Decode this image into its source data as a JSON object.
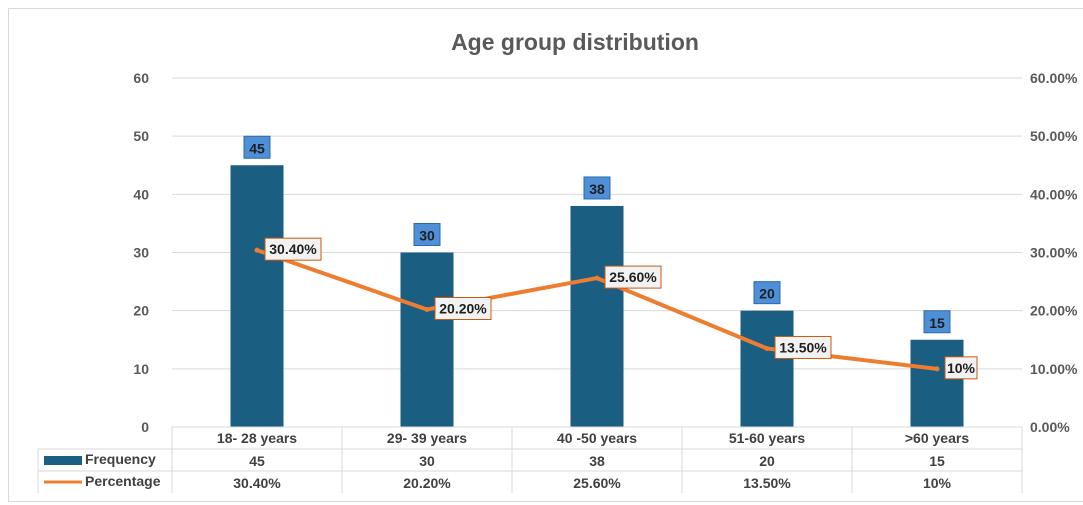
{
  "chart_data": {
    "type": "bar",
    "title": "Age group distribution",
    "categories": [
      "18- 28 years",
      "29-  39 years",
      "40 -50 years",
      "51-60 years",
      ">60 years"
    ],
    "series": [
      {
        "name": "Frequency",
        "type": "bar",
        "axis": "left",
        "values": [
          45,
          30,
          38,
          20,
          15
        ],
        "labels": [
          "45",
          "30",
          "38",
          "20",
          "15"
        ]
      },
      {
        "name": "Percentage",
        "type": "line",
        "axis": "right",
        "values": [
          30.4,
          20.2,
          25.6,
          13.5,
          10
        ],
        "labels": [
          "30.40%",
          "20.20%",
          "25.60%",
          "13.50%",
          "10%"
        ]
      }
    ],
    "ylim": [
      0,
      60
    ],
    "y_ticks": [
      "0",
      "10",
      "20",
      "30",
      "40",
      "50",
      "60"
    ],
    "y2lim": [
      0,
      60
    ],
    "y2_ticks": [
      "0.00%",
      "10.00%",
      "20.00%",
      "30.00%",
      "40.00%",
      "50.00%",
      "60.00%"
    ],
    "grid": true,
    "data_table": true,
    "colors": {
      "bar": "#1a5e82",
      "line": "#ed7d31",
      "bar_label_bg": "#4f8fd8",
      "grid": "#d9d9d9",
      "pct_label_bg": "#f2f2f2"
    }
  }
}
